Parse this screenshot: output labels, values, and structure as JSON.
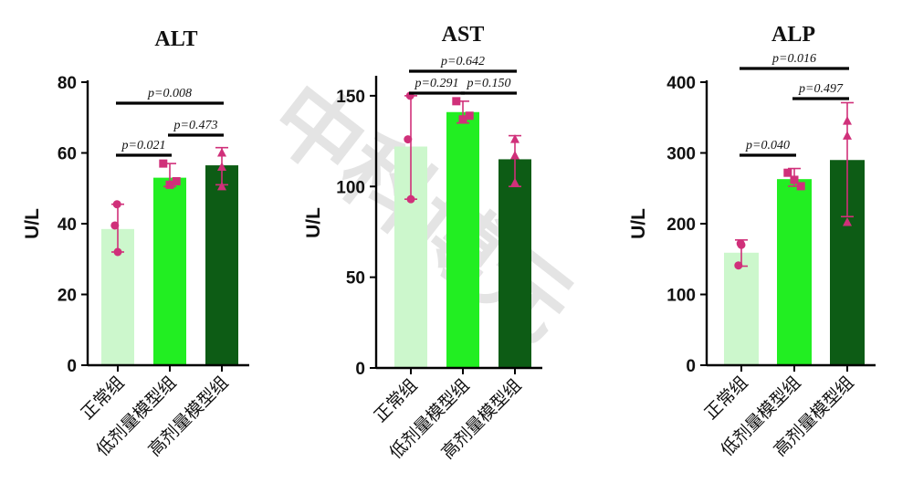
{
  "watermark": "中科博元",
  "chart_data": [
    {
      "type": "bar",
      "title": "ALT",
      "ylabel": "U/L",
      "ylim": [
        0,
        80
      ],
      "yticks": [
        0,
        20,
        40,
        60,
        80
      ],
      "categories": [
        "正常组",
        "低剂量模型组",
        "高剂量模型组"
      ],
      "colors": [
        "#ccf7cc",
        "#22ee22",
        "#0d5c15"
      ],
      "values": [
        38.5,
        53,
        56.5
      ],
      "error_low": [
        32,
        50.5,
        51
      ],
      "error_high": [
        45.5,
        57,
        61.5
      ],
      "points": [
        [
          45.5,
          39.5,
          32
        ],
        [
          57,
          51,
          52
        ],
        [
          60,
          56,
          50.5
        ]
      ],
      "markers": [
        "circle",
        "square",
        "triangle"
      ],
      "comparisons": [
        {
          "from": 0,
          "to": 1,
          "label": "p=0.021"
        },
        {
          "from": 1,
          "to": 2,
          "label": "p=0.473"
        },
        {
          "from": 0,
          "to": 2,
          "label": "p=0.008"
        }
      ]
    },
    {
      "type": "bar",
      "title": "AST",
      "ylabel": "U/L",
      "ylim": [
        0,
        160
      ],
      "yticks": [
        0,
        50,
        100,
        150
      ],
      "categories": [
        "正常组",
        "低剂量模型组",
        "高剂量模型组"
      ],
      "colors": [
        "#ccf7cc",
        "#22ee22",
        "#0d5c15"
      ],
      "values": [
        122,
        141,
        115
      ],
      "error_low": [
        93,
        135,
        100
      ],
      "error_high": [
        150,
        147,
        128
      ],
      "points": [
        [
          150,
          126,
          93
        ],
        [
          147,
          137,
          139
        ],
        [
          126,
          117,
          102
        ]
      ],
      "markers": [
        "circle",
        "square",
        "triangle"
      ],
      "comparisons": [
        {
          "from": 0,
          "to": 1,
          "label": "p=0.291"
        },
        {
          "from": 1,
          "to": 2,
          "label": "p=0.150"
        },
        {
          "from": 0,
          "to": 2,
          "label": "p=0.642"
        }
      ]
    },
    {
      "type": "bar",
      "title": "ALP",
      "ylabel": "U/L",
      "ylim": [
        0,
        400
      ],
      "yticks": [
        0,
        100,
        200,
        300,
        400
      ],
      "categories": [
        "正常组",
        "低剂量模型组",
        "高剂量模型组"
      ],
      "colors": [
        "#ccf7cc",
        "#22ee22",
        "#0d5c15"
      ],
      "values": [
        159,
        263,
        290
      ],
      "error_low": [
        140,
        253,
        210
      ],
      "error_high": [
        177,
        278,
        371
      ],
      "points": [
        [
          172,
          141,
          170
        ],
        [
          272,
          262,
          253
        ],
        [
          345,
          324,
          202
        ]
      ],
      "markers": [
        "circle",
        "square",
        "triangle"
      ],
      "comparisons": [
        {
          "from": 0,
          "to": 1,
          "label": "p=0.040"
        },
        {
          "from": 1,
          "to": 2,
          "label": "p=0.497"
        },
        {
          "from": 0,
          "to": 2,
          "label": "p=0.016"
        }
      ]
    }
  ]
}
